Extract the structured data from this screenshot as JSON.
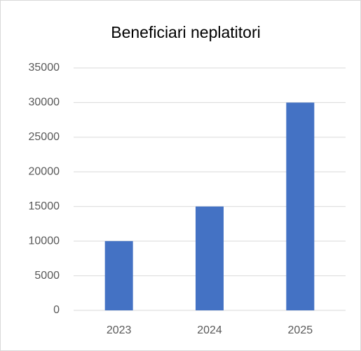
{
  "chart_data": {
    "type": "bar",
    "title": "Beneficiari neplatitori",
    "categories": [
      "2023",
      "2024",
      "2025"
    ],
    "values": [
      10000,
      15000,
      30000
    ],
    "color": "#4472c4",
    "ylim": [
      0,
      35000
    ],
    "yticks": [
      0,
      5000,
      10000,
      15000,
      20000,
      25000,
      30000,
      35000
    ],
    "grid": true
  }
}
